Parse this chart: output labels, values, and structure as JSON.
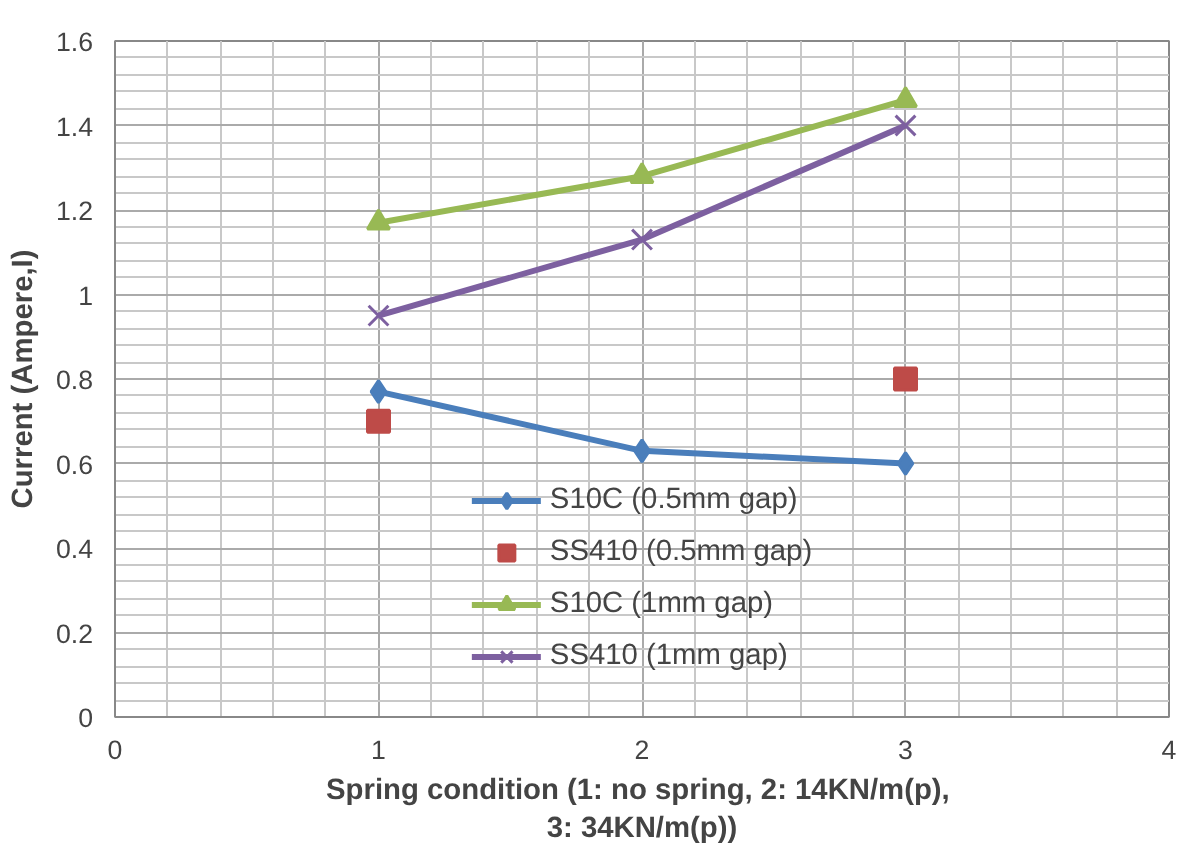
{
  "chart_data": {
    "type": "line",
    "xlabel": "Spring  condition (1: no spring, 2: 14KN/m(p),\n3: 34KN/m(p))",
    "ylabel": "Current (Ampere,I)",
    "x": [
      1,
      2,
      3
    ],
    "xlim": [
      0,
      4
    ],
    "xticks": [
      0,
      1,
      2,
      3,
      4
    ],
    "ylim": [
      0,
      1.6
    ],
    "yticks": [
      0,
      0.2,
      0.4,
      0.6,
      0.8,
      1,
      1.2,
      1.4,
      1.6
    ],
    "grid": true,
    "legend": "bottom",
    "series": [
      {
        "name": "S10C (0.5mm gap)",
        "color": "#4a7ebb",
        "marker": "diamond",
        "values": [
          0.77,
          0.63,
          0.6
        ]
      },
      {
        "name": "SS410 (0.5mm gap)",
        "color": "#be4b48",
        "marker": "square",
        "type": "scatter",
        "values": [
          0.7,
          null,
          0.8
        ]
      },
      {
        "name": "S10C (1mm gap)",
        "color": "#98b954",
        "marker": "triangle",
        "values": [
          1.17,
          1.28,
          1.46
        ]
      },
      {
        "name": "SS410 (1mm gap)",
        "color": "#7d60a0",
        "marker": "cross",
        "values": [
          0.95,
          1.13,
          1.4
        ]
      }
    ]
  }
}
